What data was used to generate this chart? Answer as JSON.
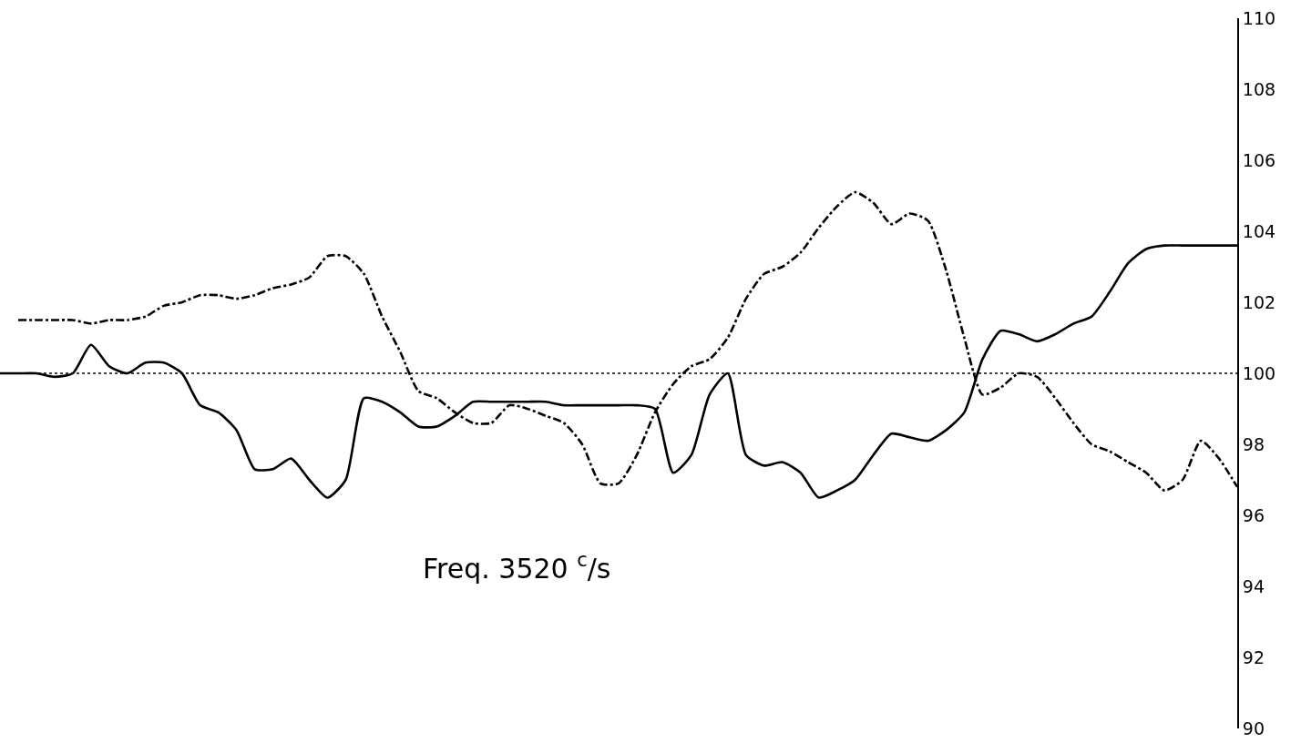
{
  "chart_data": {
    "type": "line",
    "categories": [
      null,
      null,
      null,
      null,
      null,
      null,
      null,
      null,
      null,
      null,
      null,
      null,
      null,
      null,
      null,
      null,
      null,
      null,
      null,
      null,
      null,
      null,
      null,
      null,
      null,
      null,
      null,
      null,
      null,
      null,
      null,
      null,
      null,
      null,
      null,
      null,
      null,
      null,
      null,
      null,
      null,
      null,
      null,
      null,
      null,
      null,
      null,
      null,
      null,
      null,
      null,
      null,
      null,
      null,
      null,
      null,
      null,
      null,
      null,
      null,
      null,
      null,
      null,
      null,
      null,
      null,
      null,
      null,
      null
    ],
    "series": [
      {
        "color": "#000000",
        "line_style": "solid",
        "values": [
          100.0,
          100.0,
          100.0,
          99.9,
          100.0,
          100.8,
          100.2,
          100.0,
          100.3,
          100.3,
          100.0,
          99.1,
          98.9,
          98.4,
          97.3,
          97.3,
          97.6,
          97.0,
          96.5,
          97.0,
          99.3,
          99.2,
          98.9,
          98.5,
          98.5,
          98.8,
          99.2,
          99.2,
          99.2,
          99.2,
          99.2,
          99.1,
          99.1,
          99.1,
          99.1,
          99.1,
          99.0,
          97.2,
          97.7,
          99.4,
          100.0,
          97.7,
          97.4,
          97.5,
          97.2,
          96.5,
          96.7,
          97.0,
          97.7,
          98.3,
          98.2,
          98.1,
          98.4,
          98.9,
          100.4,
          101.2,
          101.1,
          100.9,
          101.1,
          101.4,
          101.6,
          102.3,
          103.1,
          103.5,
          103.6,
          103.6,
          103.6,
          103.6,
          103.6
        ]
      },
      {
        "color": "#000000",
        "line_style": "dashed",
        "values": [
          null,
          101.5,
          101.5,
          101.5,
          101.5,
          101.4,
          101.5,
          101.5,
          101.6,
          101.9,
          102.0,
          102.2,
          102.2,
          102.1,
          102.2,
          102.4,
          102.5,
          102.7,
          103.3,
          103.3,
          102.8,
          101.6,
          100.6,
          99.5,
          99.3,
          98.9,
          98.6,
          98.6,
          99.1,
          99.0,
          98.8,
          98.6,
          98.0,
          96.9,
          96.9,
          97.7,
          98.9,
          99.7,
          100.2,
          100.4,
          101.0,
          102.1,
          102.8,
          103.0,
          103.4,
          104.1,
          104.7,
          105.1,
          104.8,
          104.2,
          104.5,
          104.3,
          102.9,
          101.0,
          99.4,
          99.6,
          100.0,
          99.9,
          99.3,
          98.6,
          98.0,
          97.8,
          97.5,
          97.2,
          96.7,
          97.0,
          98.1,
          97.6,
          96.8
        ]
      }
    ],
    "ylim": [
      90,
      110
    ],
    "yticks": [
      90,
      92,
      94,
      96,
      98,
      100,
      102,
      104,
      106,
      108,
      110
    ],
    "tick_labels": "y",
    "grid": false,
    "ref_lines": [
      {
        "axis": "y",
        "value": 100,
        "line_style": "dotted",
        "color": "#000000"
      }
    ],
    "annotations": [
      "Freq. 3520 $^{c}$/s"
    ]
  }
}
